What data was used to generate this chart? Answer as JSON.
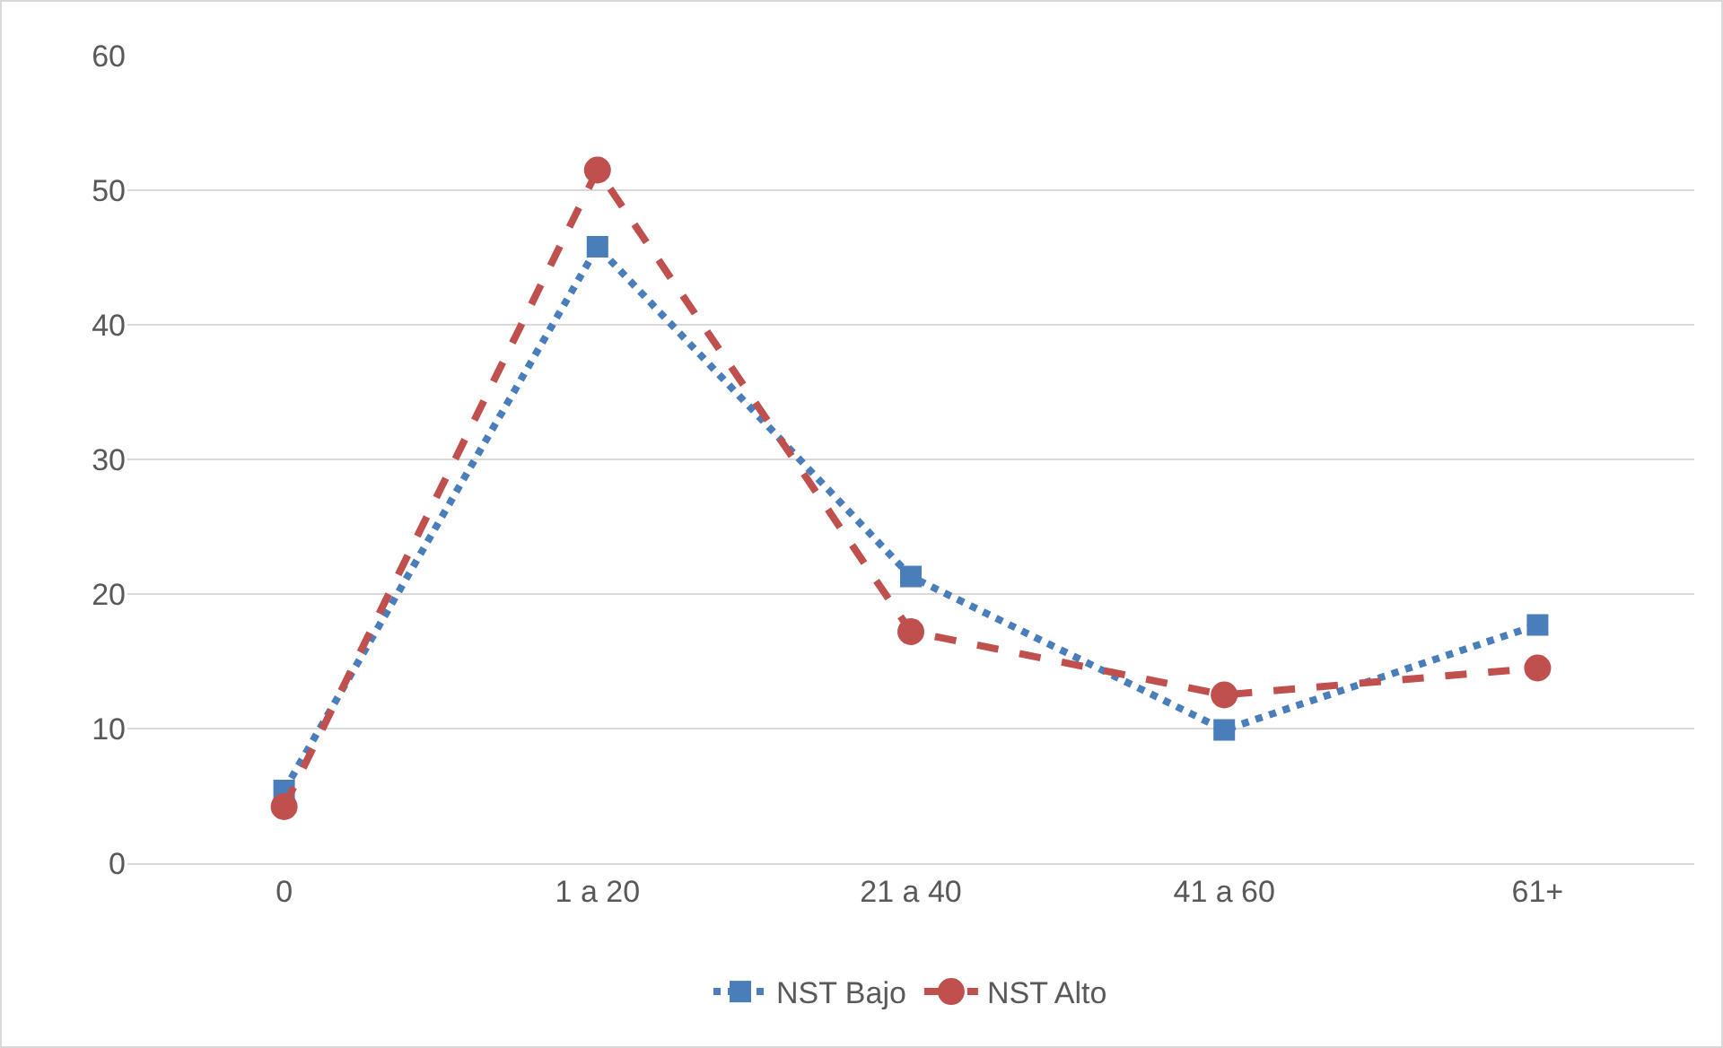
{
  "chart_data": {
    "type": "line",
    "categories": [
      "0",
      "1 a 20",
      "21 a 40",
      "41 a 60",
      "61+"
    ],
    "series": [
      {
        "name": "NST Bajo",
        "color": "#4a7ebb",
        "values": [
          5.4,
          45.8,
          21.3,
          9.9,
          17.7
        ],
        "marker": "square",
        "line_style": "dotted"
      },
      {
        "name": "NST Alto",
        "color": "#c0504d",
        "values": [
          4.2,
          51.5,
          17.2,
          12.5,
          14.5
        ],
        "marker": "circle",
        "line_style": "dashed"
      }
    ],
    "ylim": [
      0,
      60
    ],
    "yticks": [
      0,
      10,
      20,
      30,
      40,
      50,
      60
    ],
    "grid": "y",
    "legend": "bottom"
  }
}
